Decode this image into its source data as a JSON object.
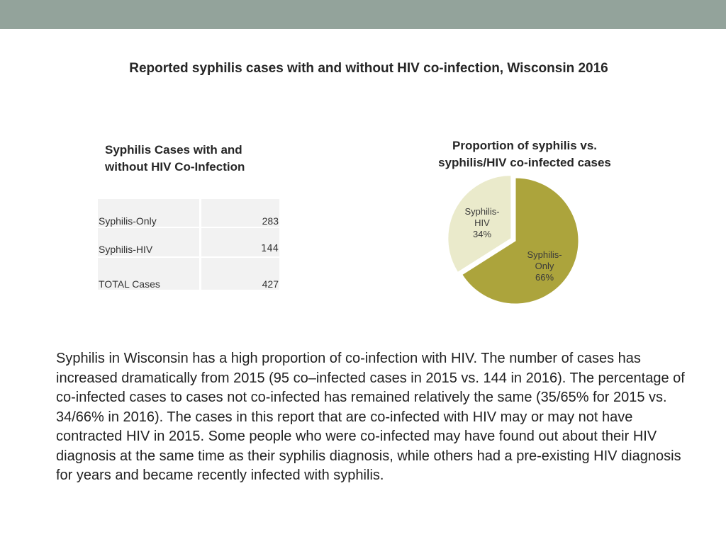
{
  "title": "Reported syphilis cases with and without HIV co-infection, Wisconsin 2016",
  "table": {
    "title_line1": "Syphilis Cases with and",
    "title_line2": "without HIV Co-Infection",
    "rows": [
      {
        "label": "Syphilis-Only",
        "value": "283"
      },
      {
        "label": "Syphilis-HIV",
        "value": "144"
      },
      {
        "label": "TOTAL Cases",
        "value": "427"
      }
    ]
  },
  "chart_data": {
    "type": "pie",
    "title": "Proportion of syphilis vs. syphilis/HIV co-infected cases",
    "title_line1": "Proportion of syphilis vs.",
    "title_line2": "syphilis/HIV co-infected cases",
    "slices": [
      {
        "name": "Syphilis-Only",
        "label_lines": [
          "Syphilis-",
          "Only",
          "66%"
        ],
        "value": 66,
        "color": "#aca43c"
      },
      {
        "name": "Syphilis-HIV",
        "label_lines": [
          "Syphilis-",
          "HIV",
          "34%"
        ],
        "value": 34,
        "color": "#eaeacb"
      }
    ]
  },
  "body_text": "Syphilis in Wisconsin has a high proportion of co-infection with HIV.  The number of cases has increased dramatically from 2015 (95 co–infected cases in 2015 vs. 144 in 2016).  The percentage of co-infected cases to cases not co-infected has remained relatively the same (35/65% for 2015 vs. 34/66% in 2016). The cases in this report that are co-infected with HIV may or may not have contracted HIV in 2015. Some people who were co-infected may have found out about their HIV diagnosis at the same time as their syphilis diagnosis, while others had a pre-existing HIV diagnosis for years and became recently infected with syphilis."
}
